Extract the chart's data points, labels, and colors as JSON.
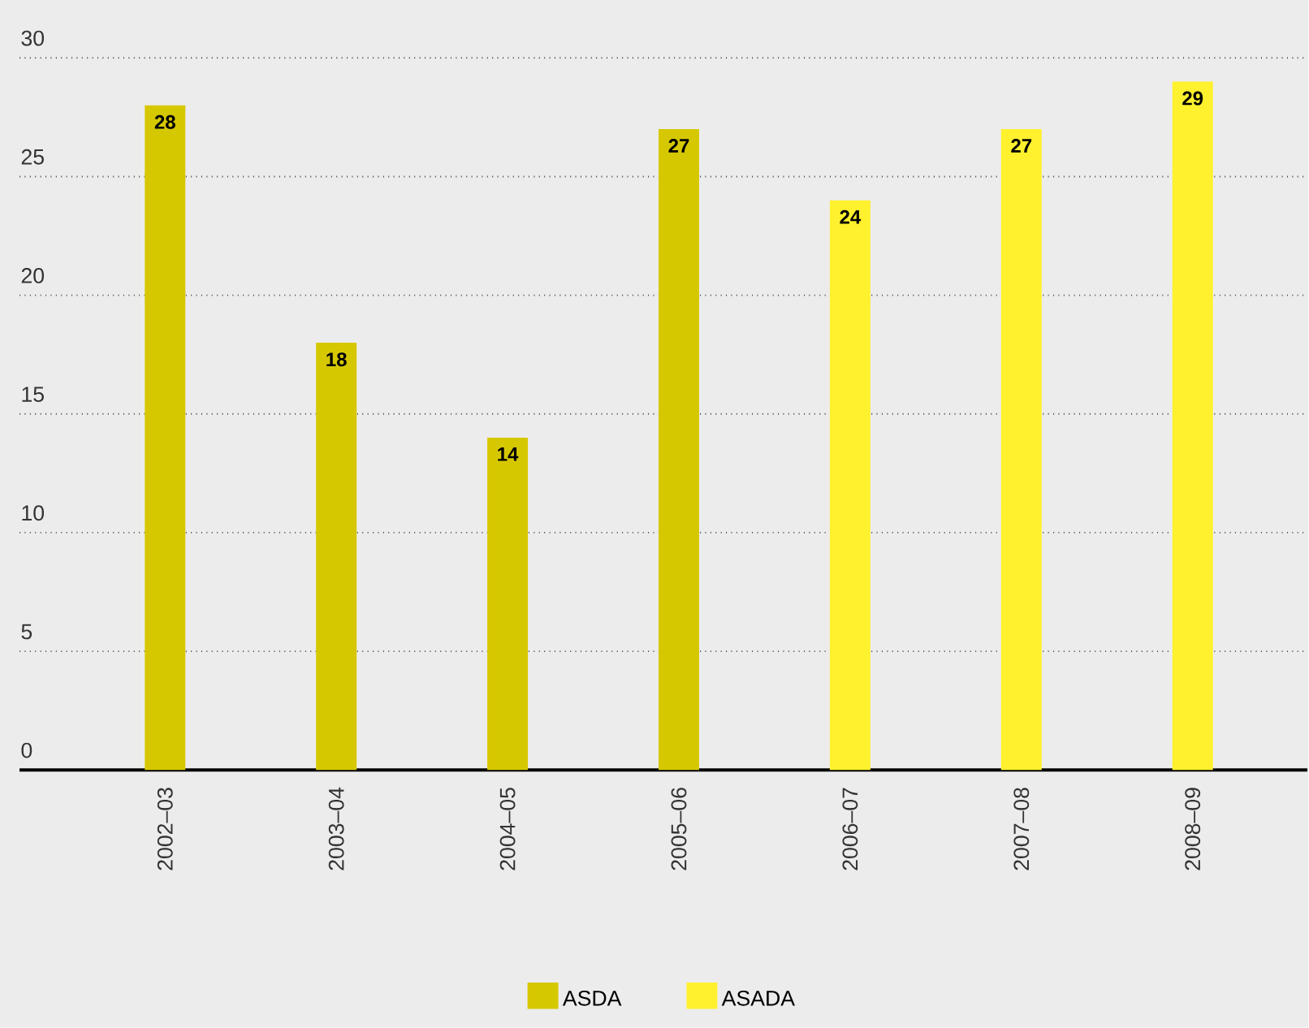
{
  "chart_data": {
    "type": "bar",
    "categories": [
      "2002–03",
      "2003–04",
      "2004–05",
      "2005–06",
      "2006–07",
      "2007–08",
      "2008–09"
    ],
    "series": [
      {
        "name": "ASDA",
        "color": "#d6c800",
        "values": [
          28,
          18,
          14,
          27,
          null,
          null,
          null
        ]
      },
      {
        "name": "ASADA",
        "color": "#fff12d",
        "values": [
          null,
          null,
          null,
          null,
          24,
          27,
          29
        ]
      }
    ],
    "ylim": [
      0,
      30
    ],
    "yticks": [
      0,
      5,
      10,
      15,
      20,
      25,
      30
    ],
    "grid": "y",
    "data_labels": true,
    "legend": "bottom"
  }
}
